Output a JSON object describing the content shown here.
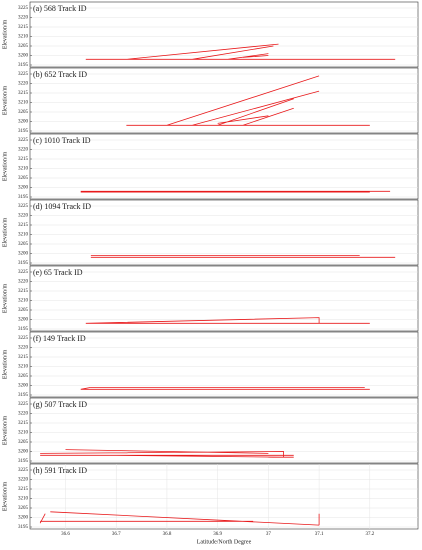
{
  "chart_data": [
    {
      "type": "line",
      "title": "(a) 568 Track ID",
      "ylabel": "Elevation/m",
      "xlim": [
        36.53,
        37.295
      ],
      "ylim": [
        3195,
        3225
      ],
      "yticks": [
        3195,
        3200,
        3205,
        3210,
        3215,
        3220,
        3225
      ],
      "grid": true,
      "series": [
        {
          "color": "#e8191b",
          "x": [
            36.64,
            37.25,
            null,
            36.72,
            37.02,
            null,
            36.85,
            37.01,
            null,
            36.92,
            37.0,
            null,
            36.95,
            37.0
          ],
          "values": [
            3198,
            3198,
            null,
            3198,
            3206,
            null,
            3198,
            3205,
            null,
            3198,
            3201,
            null,
            3199,
            3200
          ]
        }
      ]
    },
    {
      "type": "line",
      "title": "(b) 652 Track ID",
      "ylabel": "Elevation/m",
      "xlim": [
        36.53,
        37.295
      ],
      "ylim": [
        3195,
        3225
      ],
      "yticks": [
        3195,
        3200,
        3205,
        3210,
        3215,
        3220,
        3225
      ],
      "grid": true,
      "series": [
        {
          "color": "#e8191b",
          "x": [
            36.72,
            37.2,
            null,
            36.8,
            37.1,
            null,
            36.85,
            37.1,
            null,
            36.9,
            37.05,
            null,
            36.95,
            37.05,
            null,
            36.9,
            37.0
          ],
          "values": [
            3198,
            3198,
            null,
            3198,
            3224,
            null,
            3198,
            3216,
            null,
            3198,
            3212,
            null,
            3198,
            3207,
            null,
            3199,
            3203
          ]
        }
      ]
    },
    {
      "type": "line",
      "title": "(c) 1010 Track ID",
      "ylabel": "Elevation/m",
      "xlim": [
        36.53,
        37.295
      ],
      "ylim": [
        3195,
        3225
      ],
      "yticks": [
        3195,
        3200,
        3205,
        3210,
        3215,
        3220,
        3225
      ],
      "grid": true,
      "series": [
        {
          "color": "#e8191b",
          "x": [
            36.63,
            37.24,
            null,
            36.63,
            37.2
          ],
          "values": [
            3198,
            3198,
            null,
            3197.6,
            3197.6
          ]
        }
      ]
    },
    {
      "type": "line",
      "title": "(d) 1094 Track ID",
      "ylabel": "Elevation/m",
      "xlim": [
        36.53,
        37.295
      ],
      "ylim": [
        3195,
        3225
      ],
      "yticks": [
        3195,
        3200,
        3205,
        3210,
        3215,
        3220,
        3225
      ],
      "grid": true,
      "series": [
        {
          "color": "#e8191b",
          "x": [
            36.65,
            37.25,
            null,
            36.65,
            37.18
          ],
          "values": [
            3198,
            3198,
            null,
            3199,
            3199
          ]
        }
      ]
    },
    {
      "type": "line",
      "title": "(e) 65 Track ID",
      "ylabel": "Elevation/m",
      "xlim": [
        36.53,
        37.295
      ],
      "ylim": [
        3195,
        3225
      ],
      "yticks": [
        3195,
        3200,
        3205,
        3210,
        3215,
        3220,
        3225
      ],
      "grid": true,
      "series": [
        {
          "color": "#e8191b",
          "x": [
            36.64,
            37.2,
            null,
            36.64,
            37.1,
            37.1,
            36.66
          ],
          "values": [
            3198,
            3198,
            null,
            3198,
            3201,
            3198,
            3198
          ]
        }
      ]
    },
    {
      "type": "line",
      "title": "(f) 149 Track ID",
      "ylabel": "Elevation/m",
      "xlim": [
        36.53,
        37.295
      ],
      "ylim": [
        3195,
        3225
      ],
      "yticks": [
        3195,
        3200,
        3205,
        3210,
        3215,
        3220,
        3225
      ],
      "grid": true,
      "series": [
        {
          "color": "#e8191b",
          "x": [
            36.63,
            37.2,
            null,
            36.65,
            37.19,
            null,
            36.63,
            36.65
          ],
          "values": [
            3198,
            3198,
            null,
            3199,
            3199,
            null,
            3198,
            3199
          ]
        }
      ]
    },
    {
      "type": "line",
      "title": "(g) 507 Track ID",
      "ylabel": "Elevation/m",
      "xlim": [
        36.53,
        37.295
      ],
      "ylim": [
        3195,
        3225
      ],
      "yticks": [
        3195,
        3200,
        3205,
        3210,
        3215,
        3220,
        3225
      ],
      "grid": true,
      "series": [
        {
          "color": "#e8191b",
          "x": [
            36.55,
            37.05,
            null,
            36.55,
            37.03,
            37.03,
            36.7,
            null,
            36.6,
            37.0,
            null,
            37.0,
            37.05
          ],
          "values": [
            3198,
            3198,
            null,
            3199,
            3200,
            3197,
            3198,
            null,
            3201,
            3199,
            null,
            3197,
            3197
          ]
        }
      ]
    },
    {
      "type": "line",
      "title": "(h) 591 Track ID",
      "ylabel": "Elevation/m",
      "xlabel": "Latitude/North Degree",
      "xlim": [
        36.53,
        37.295
      ],
      "ylim": [
        3195,
        3225
      ],
      "yticks": [
        3195,
        3200,
        3205,
        3210,
        3215,
        3220,
        3225
      ],
      "xticks": [
        36.6,
        36.7,
        36.8,
        36.9,
        37.0,
        37.1,
        37.2
      ],
      "grid": true,
      "series": [
        {
          "color": "#e8191b",
          "x": [
            36.55,
            36.97,
            null,
            36.57,
            37.1,
            null,
            36.55,
            36.56,
            null,
            37.1,
            37.1
          ],
          "values": [
            3198,
            3198,
            null,
            3203,
            3196,
            null,
            3197,
            3202,
            null,
            3196,
            3202
          ]
        }
      ]
    }
  ]
}
